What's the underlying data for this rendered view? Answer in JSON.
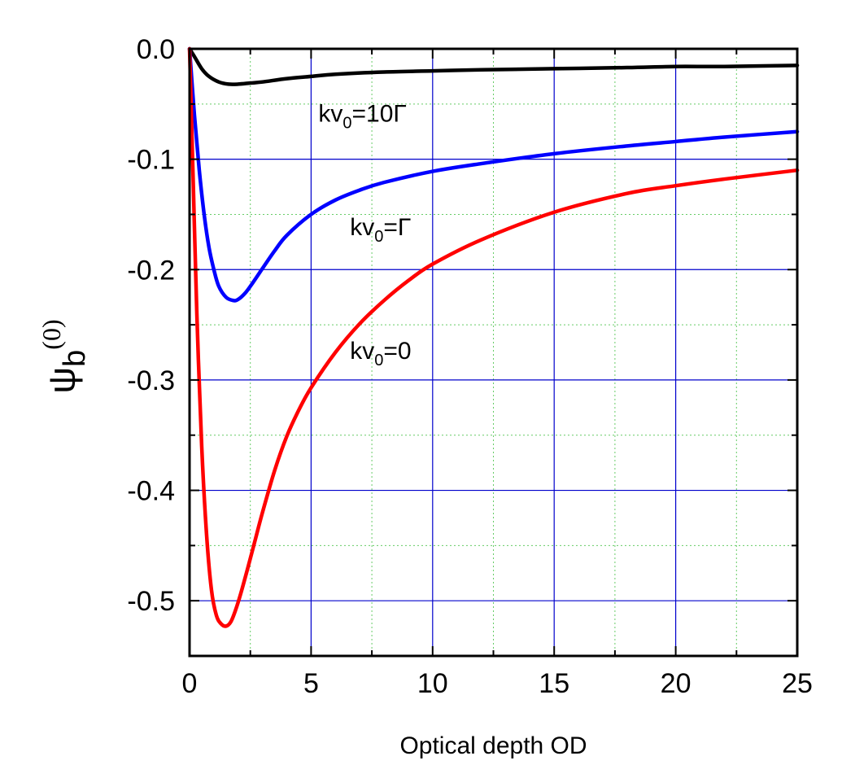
{
  "chart_data": {
    "type": "line",
    "xlabel": "Optical depth OD",
    "ylabel": {
      "main": "ψ",
      "sub": "b",
      "sup": "(0)"
    },
    "xlim": [
      0,
      25
    ],
    "ylim": [
      -0.55,
      0.0
    ],
    "x_ticks": [
      0,
      5,
      10,
      15,
      20,
      25
    ],
    "x_tick_labels": [
      "0",
      "5",
      "10",
      "15",
      "20",
      "25"
    ],
    "y_ticks": [
      0.0,
      -0.1,
      -0.2,
      -0.3,
      -0.4,
      -0.5
    ],
    "y_tick_labels": [
      "0.0",
      "-0.1",
      "-0.2",
      "-0.3",
      "-0.4",
      "-0.5"
    ],
    "grid": {
      "major": true,
      "minor": true,
      "major_color": "#0000cc",
      "minor_color": "#66cc66"
    },
    "series": [
      {
        "color": "#000000",
        "x": [
          0,
          0.2,
          0.5,
          0.8,
          1.2,
          1.6,
          2.0,
          2.5,
          3,
          4,
          5,
          6,
          8,
          10,
          12,
          15,
          18,
          20,
          22,
          25
        ],
        "y": [
          0,
          -0.007,
          -0.018,
          -0.025,
          -0.03,
          -0.032,
          -0.032,
          -0.031,
          -0.03,
          -0.027,
          -0.025,
          -0.023,
          -0.021,
          -0.02,
          -0.019,
          -0.018,
          -0.017,
          -0.016,
          -0.016,
          -0.015
        ]
      },
      {
        "color": "#0000ff",
        "x": [
          0,
          0.2,
          0.4,
          0.6,
          0.8,
          1.0,
          1.2,
          1.5,
          1.8,
          2.0,
          2.3,
          2.6,
          3.0,
          3.5,
          4,
          5,
          6,
          7,
          8,
          10,
          12,
          15,
          18,
          20,
          22,
          25
        ],
        "y": [
          0,
          -0.06,
          -0.11,
          -0.15,
          -0.18,
          -0.2,
          -0.215,
          -0.225,
          -0.228,
          -0.227,
          -0.221,
          -0.212,
          -0.199,
          -0.183,
          -0.169,
          -0.15,
          -0.137,
          -0.128,
          -0.121,
          -0.111,
          -0.104,
          -0.095,
          -0.088,
          -0.084,
          -0.08,
          -0.075
        ]
      },
      {
        "color": "#ff0000",
        "x": [
          0,
          0.15,
          0.3,
          0.5,
          0.7,
          0.9,
          1.1,
          1.3,
          1.5,
          1.7,
          1.9,
          2.1,
          2.4,
          2.7,
          3.0,
          3.5,
          4,
          4.5,
          5,
          6,
          7,
          8,
          9,
          10,
          12,
          15,
          18,
          20,
          22,
          25
        ],
        "y": [
          0,
          -0.12,
          -0.24,
          -0.36,
          -0.44,
          -0.49,
          -0.513,
          -0.521,
          -0.523,
          -0.519,
          -0.508,
          -0.494,
          -0.47,
          -0.445,
          -0.42,
          -0.382,
          -0.351,
          -0.327,
          -0.307,
          -0.275,
          -0.249,
          -0.228,
          -0.21,
          -0.195,
          -0.173,
          -0.148,
          -0.131,
          -0.124,
          -0.118,
          -0.11
        ]
      }
    ],
    "annotations": [
      {
        "prefix": "kv",
        "sub": "0",
        "suffix": "=10Γ",
        "x": 5.3,
        "y": -0.066
      },
      {
        "prefix": "kv",
        "sub": "0",
        "suffix": "=Γ",
        "x": 6.6,
        "y": -0.169
      },
      {
        "prefix": "kv",
        "sub": "0",
        "suffix": "=0",
        "x": 6.6,
        "y": -0.281
      }
    ]
  }
}
